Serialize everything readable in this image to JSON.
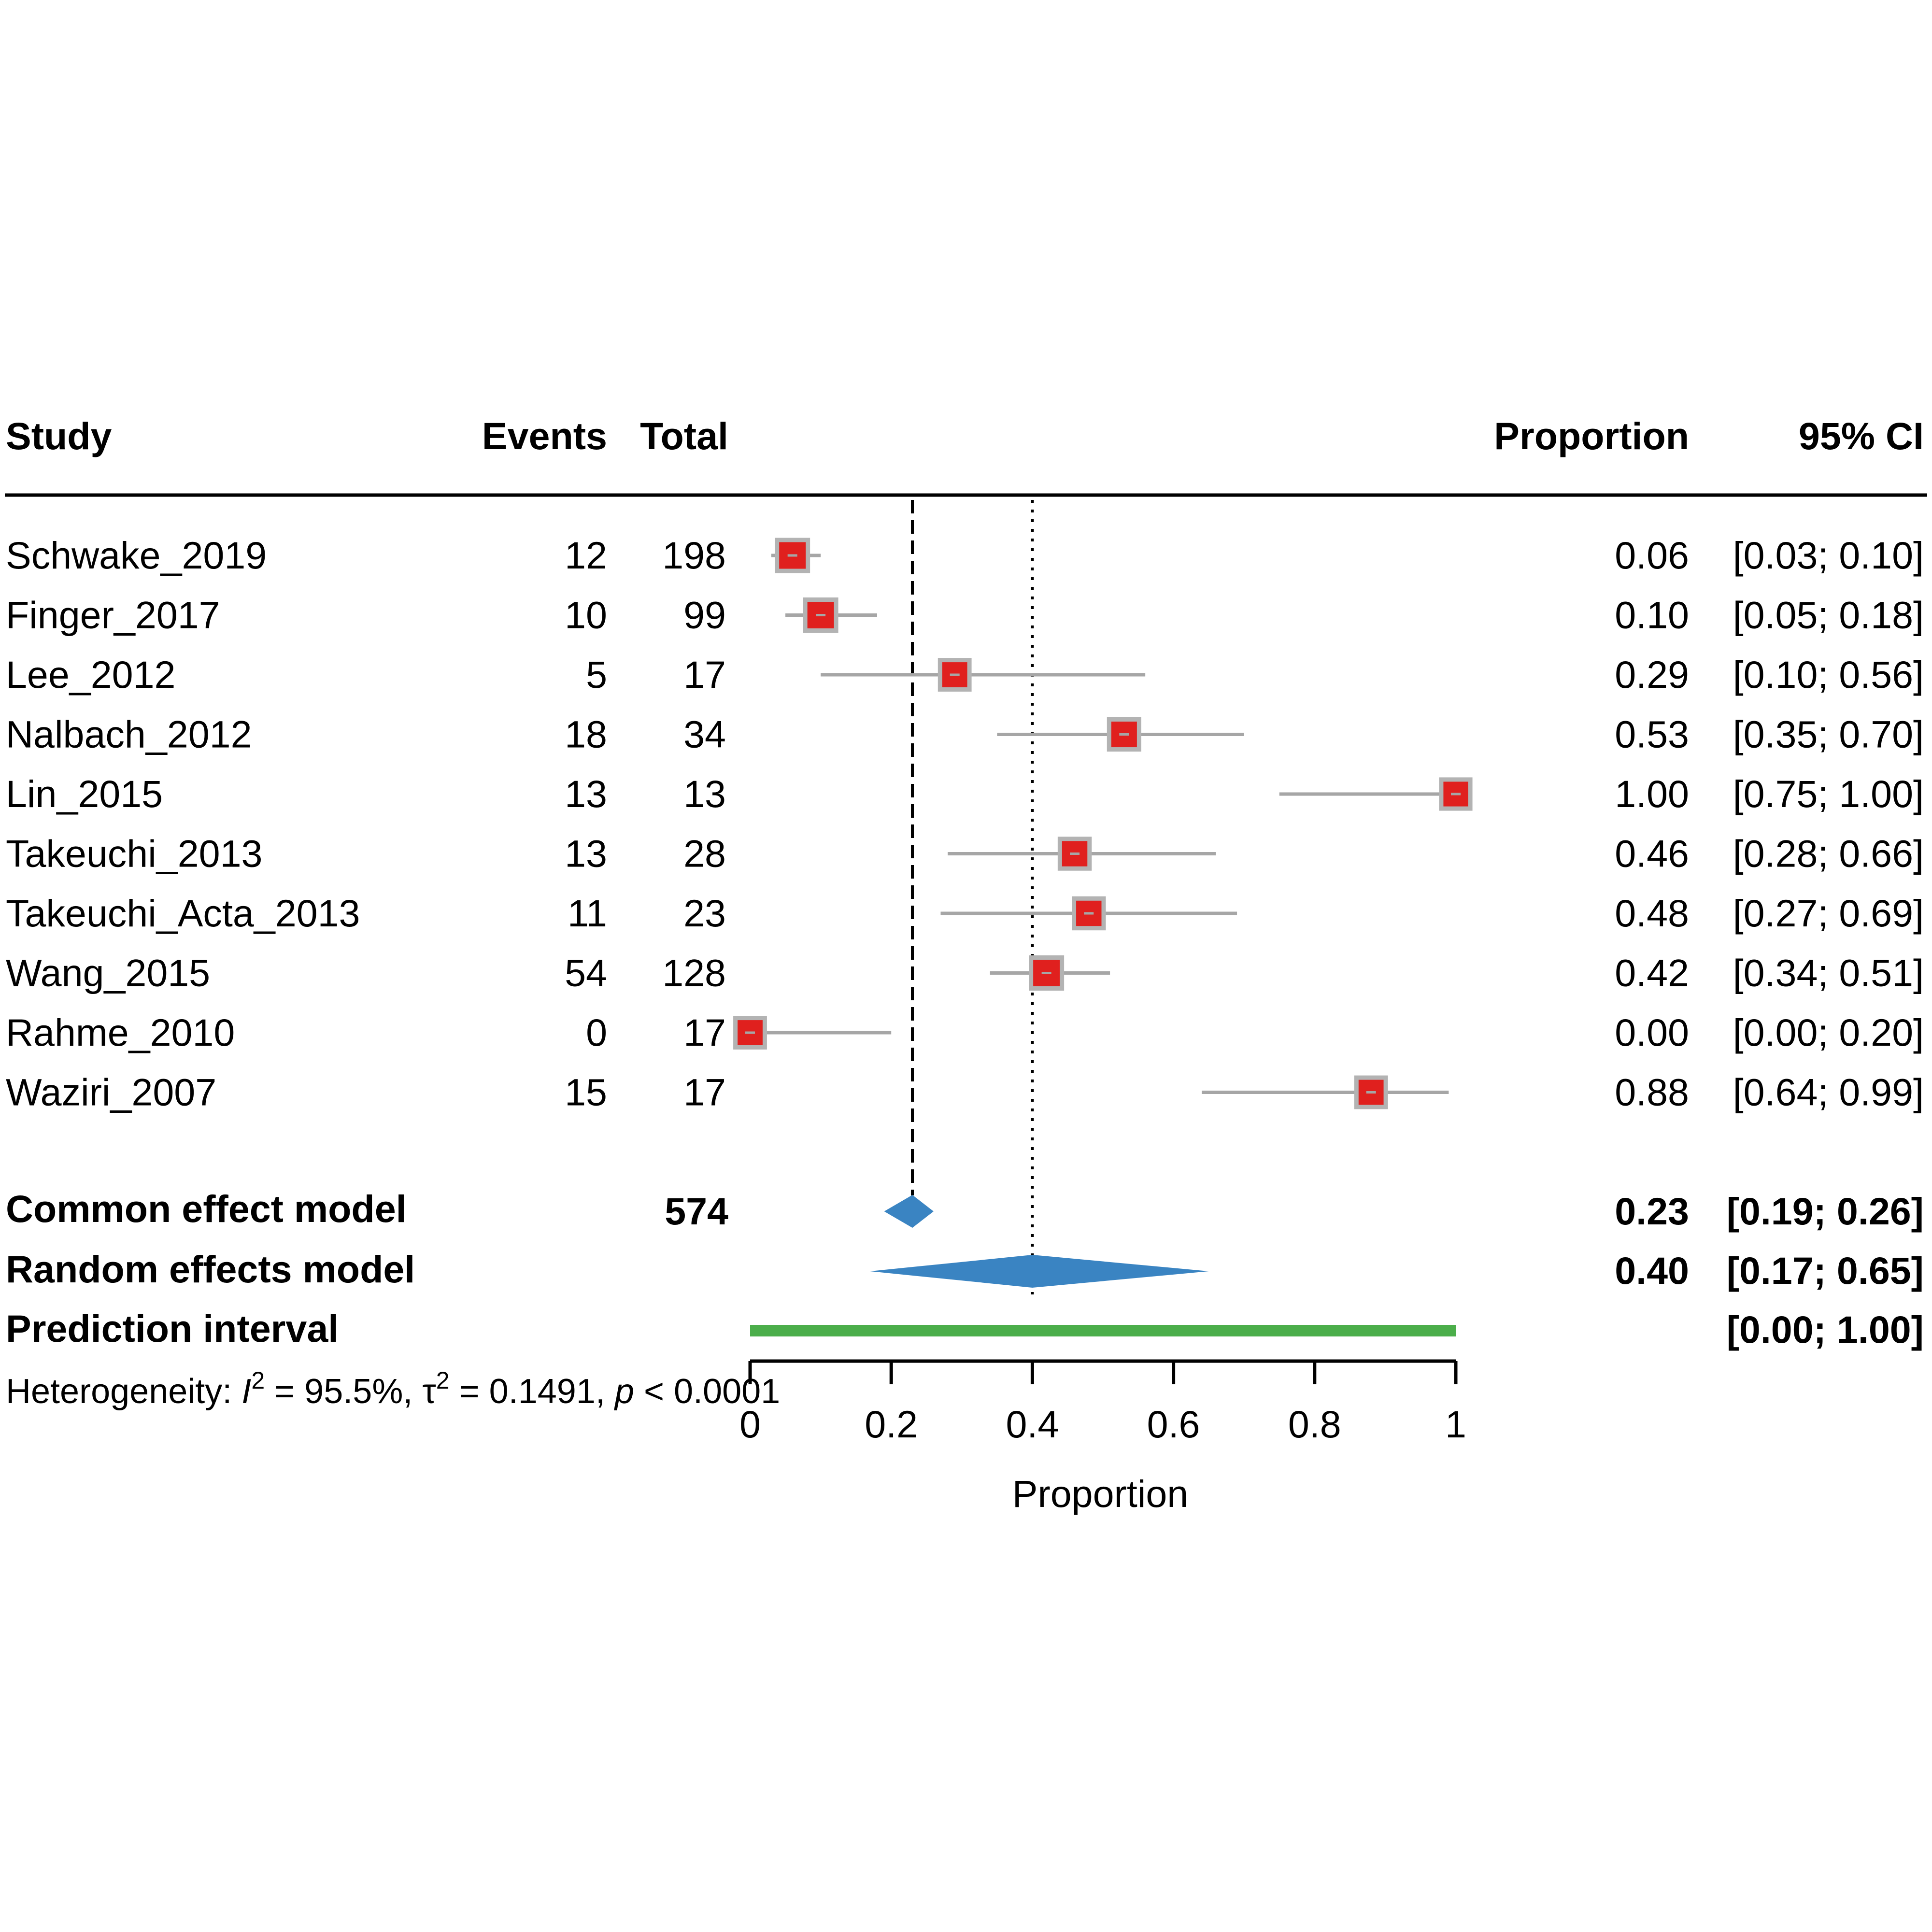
{
  "columns": {
    "study": "Study",
    "events": "Events",
    "total": "Total",
    "proportion": "Proportion",
    "ci": "95% CI"
  },
  "studies": [
    {
      "name": "Schwake_2019",
      "events": "12",
      "total": "198",
      "prop_label": "0.06",
      "ci_label": "[0.03; 0.10]",
      "prop": 0.06,
      "lo": 0.03,
      "hi": 0.1,
      "weight": 1.0
    },
    {
      "name": "Finger_2017",
      "events": "10",
      "total": "99",
      "prop_label": "0.10",
      "ci_label": "[0.05; 0.18]",
      "prop": 0.1,
      "lo": 0.05,
      "hi": 0.18,
      "weight": 1.0
    },
    {
      "name": "Lee_2012",
      "events": "5",
      "total": "17",
      "prop_label": "0.29",
      "ci_label": "[0.10; 0.56]",
      "prop": 0.29,
      "lo": 0.1,
      "hi": 0.56,
      "weight": 0.95
    },
    {
      "name": "Nalbach_2012",
      "events": "18",
      "total": "34",
      "prop_label": "0.53",
      "ci_label": "[0.35; 0.70]",
      "prop": 0.53,
      "lo": 0.35,
      "hi": 0.7,
      "weight": 0.97
    },
    {
      "name": "Lin_2015",
      "events": "13",
      "total": "13",
      "prop_label": "1.00",
      "ci_label": "[0.75; 1.00]",
      "prop": 1.0,
      "lo": 0.75,
      "hi": 1.0,
      "weight": 0.94
    },
    {
      "name": "Takeuchi_2013",
      "events": "13",
      "total": "28",
      "prop_label": "0.46",
      "ci_label": "[0.28; 0.66]",
      "prop": 0.46,
      "lo": 0.28,
      "hi": 0.66,
      "weight": 0.96
    },
    {
      "name": "Takeuchi_Acta_2013",
      "events": "11",
      "total": "23",
      "prop_label": "0.48",
      "ci_label": "[0.27; 0.69]",
      "prop": 0.48,
      "lo": 0.27,
      "hi": 0.69,
      "weight": 0.96
    },
    {
      "name": "Wang_2015",
      "events": "54",
      "total": "128",
      "prop_label": "0.42",
      "ci_label": "[0.34; 0.51]",
      "prop": 0.42,
      "lo": 0.34,
      "hi": 0.51,
      "weight": 1.0
    },
    {
      "name": "Rahme_2010",
      "events": "0",
      "total": "17",
      "prop_label": "0.00",
      "ci_label": "[0.00; 0.20]",
      "prop": 0.0,
      "lo": 0.0,
      "hi": 0.2,
      "weight": 0.95
    },
    {
      "name": "Waziri_2007",
      "events": "15",
      "total": "17",
      "prop_label": "0.88",
      "ci_label": "[0.64; 0.99]",
      "prop": 0.88,
      "lo": 0.64,
      "hi": 0.99,
      "weight": 0.95
    }
  ],
  "summary": {
    "common": {
      "label": "Common effect model",
      "total": "574",
      "prop_label": "0.23",
      "ci_label": "[0.19; 0.26]",
      "prop": 0.23,
      "lo": 0.19,
      "hi": 0.26
    },
    "random": {
      "label": "Random effects model",
      "prop_label": "0.40",
      "ci_label": "[0.17; 0.65]",
      "prop": 0.4,
      "lo": 0.17,
      "hi": 0.65
    },
    "prediction": {
      "label": "Prediction interval",
      "ci_label": "[0.00; 1.00]",
      "lo": 0.0,
      "hi": 1.0
    }
  },
  "heterogeneity": {
    "prefix": "Heterogeneity: ",
    "i2_symbol": "I",
    "sup": "2",
    "i2_value": " = 95.5%, ",
    "tau_symbol": "τ",
    "tau_value": " = 0.1491, ",
    "p_symbol": "p",
    "p_value": " < 0.0001"
  },
  "chart_data": {
    "type": "forest",
    "xlabel": "Proportion",
    "xlim": [
      0,
      1
    ],
    "ticks": [
      "0",
      "0.2",
      "0.4",
      "0.6",
      "0.8",
      "1"
    ],
    "tick_values": [
      0,
      0.2,
      0.4,
      0.6,
      0.8,
      1
    ],
    "common_line": 0.23,
    "random_line": 0.4
  },
  "colors": {
    "box_fill": "#e0201e",
    "box_border": "#b3b3b3",
    "ci_line": "#a6a6a6",
    "diamond": "#3a84c2",
    "prediction": "#4bae4a"
  }
}
